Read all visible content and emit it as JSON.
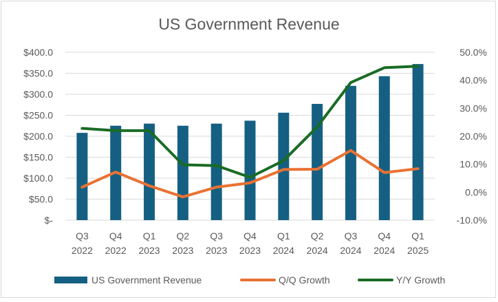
{
  "chart_data": {
    "type": "bar+line",
    "title": "US Government Revenue",
    "categories": [
      [
        "Q3",
        "2022"
      ],
      [
        "Q4",
        "2022"
      ],
      [
        "Q1",
        "2023"
      ],
      [
        "Q2",
        "2023"
      ],
      [
        "Q3",
        "2023"
      ],
      [
        "Q4",
        "2023"
      ],
      [
        "Q1",
        "2024"
      ],
      [
        "Q2",
        "2024"
      ],
      [
        "Q3",
        "2024"
      ],
      [
        "Q4",
        "2024"
      ],
      [
        "Q1",
        "2025"
      ]
    ],
    "left_axis": {
      "ylim": [
        0,
        400
      ],
      "ticks": [
        {
          "value": 0,
          "label": "$-"
        },
        {
          "value": 50,
          "label": "$50.0"
        },
        {
          "value": 100,
          "label": "$100.0"
        },
        {
          "value": 150,
          "label": "$150.0"
        },
        {
          "value": 200,
          "label": "$200.0"
        },
        {
          "value": 250,
          "label": "$250.0"
        },
        {
          "value": 300,
          "label": "$300.0"
        },
        {
          "value": 350,
          "label": "$350.0"
        },
        {
          "value": 400,
          "label": "$400.0"
        }
      ]
    },
    "right_axis": {
      "ylim": [
        -10,
        50
      ],
      "ticks": [
        {
          "value": -10,
          "label": "-10.0%"
        },
        {
          "value": 0,
          "label": "0.0%"
        },
        {
          "value": 10,
          "label": "10.0%"
        },
        {
          "value": 20,
          "label": "20.0%"
        },
        {
          "value": 30,
          "label": "30.0%"
        },
        {
          "value": 40,
          "label": "40.0%"
        },
        {
          "value": 50,
          "label": "50.0%"
        }
      ]
    },
    "grid": true,
    "legend_position": "bottom",
    "series": [
      {
        "name": "US Government Revenue",
        "type": "bar",
        "axis": "left",
        "color": "#156082",
        "values": [
          208,
          225,
          230,
          225,
          230,
          237,
          256,
          277,
          320,
          343,
          372
        ]
      },
      {
        "name": "Q/Q Growth",
        "type": "line",
        "axis": "right",
        "color": "#E97132",
        "values": [
          1.8,
          7.2,
          2.3,
          -1.7,
          1.8,
          3.3,
          8.1,
          8.2,
          14.9,
          7.0,
          8.4
        ]
      },
      {
        "name": "Y/Y Growth",
        "type": "line",
        "axis": "right",
        "color": "#196B24",
        "values": [
          22.8,
          22.0,
          22.0,
          9.8,
          9.5,
          5.3,
          11.3,
          23.3,
          39.2,
          44.5,
          45.0
        ]
      }
    ]
  }
}
